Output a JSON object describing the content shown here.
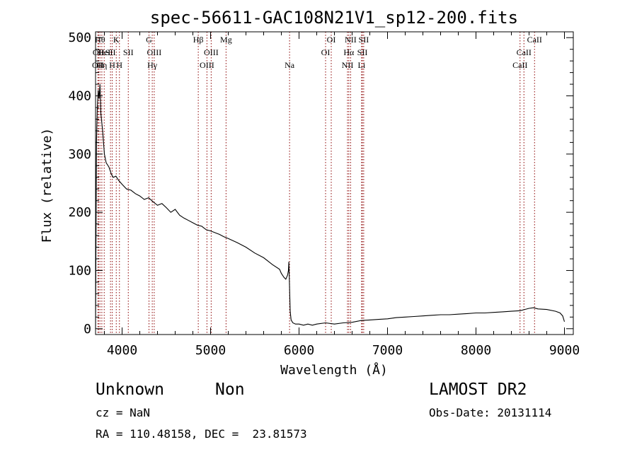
{
  "chart_data": {
    "type": "line",
    "title": "spec-56611-GAC108N21V1_sp12-200.fits",
    "xlabel": "Wavelength (Å)",
    "ylabel": "Flux (relative)",
    "xlim": [
      3700,
      9100
    ],
    "ylim": [
      -10,
      510
    ],
    "xticks": [
      4000,
      5000,
      6000,
      7000,
      8000,
      9000
    ],
    "yticks": [
      0,
      100,
      200,
      300,
      400,
      500
    ],
    "x_minor_step": 200,
    "y_minor_step": 20,
    "grid": false,
    "series": [
      {
        "x": [
          3700,
          3710,
          3720,
          3730,
          3740,
          3750,
          3760,
          3780,
          3800,
          3820,
          3850,
          3880,
          3900,
          3930,
          3960,
          4000,
          4050,
          4100,
          4150,
          4200,
          4250,
          4300,
          4350,
          4400,
          4450,
          4500,
          4550,
          4600,
          4650,
          4700,
          4750,
          4800,
          4850,
          4900,
          4950,
          5000,
          5050,
          5100,
          5150,
          5200,
          5300,
          5400,
          5500,
          5600,
          5700,
          5780,
          5800,
          5830,
          5850,
          5870,
          5880,
          5885,
          5890,
          5900,
          5910,
          5930,
          5960,
          6000,
          6050,
          6100,
          6150,
          6200,
          6300,
          6400,
          6500,
          6600,
          6700,
          6800,
          6900,
          7000,
          7100,
          7200,
          7300,
          7400,
          7500,
          7600,
          7700,
          7800,
          7900,
          8000,
          8100,
          8200,
          8300,
          8400,
          8500,
          8550,
          8600,
          8650,
          8700,
          8800,
          8900,
          8950,
          8980,
          9000
        ],
        "y": [
          0,
          320,
          380,
          410,
          395,
          420,
          370,
          340,
          300,
          285,
          278,
          265,
          260,
          262,
          255,
          248,
          240,
          238,
          232,
          228,
          222,
          225,
          218,
          212,
          215,
          208,
          200,
          205,
          195,
          190,
          186,
          182,
          178,
          176,
          170,
          168,
          165,
          162,
          158,
          155,
          148,
          140,
          130,
          122,
          110,
          102,
          95,
          88,
          85,
          92,
          100,
          115,
          85,
          30,
          15,
          10,
          8,
          8,
          6,
          8,
          6,
          8,
          10,
          8,
          10,
          11,
          14,
          15,
          16,
          17,
          19,
          20,
          21,
          22,
          23,
          24,
          24,
          25,
          26,
          27,
          27,
          28,
          29,
          30,
          31,
          33,
          35,
          36,
          34,
          33,
          30,
          27,
          22,
          12
        ]
      }
    ],
    "lines": [
      {
        "x": 3727,
        "tier": 2,
        "label": "OII"
      },
      {
        "x": 3734,
        "tier": 1,
        "label": "OII"
      },
      {
        "x": 3750,
        "tier": 0,
        "label": "Hθ"
      },
      {
        "x": 3771,
        "tier": 2,
        "label": "Hη"
      },
      {
        "x": 3798,
        "tier": 1,
        "label": "HeI"
      },
      {
        "x": 3869,
        "tier": 1,
        "label": "SII"
      },
      {
        "x": 3889,
        "tier": 2,
        "label": "H"
      },
      {
        "x": 3934,
        "tier": 0,
        "label": "K"
      },
      {
        "x": 3970,
        "tier": 2,
        "label": "H"
      },
      {
        "x": 4070,
        "tier": 1,
        "label": "SII"
      },
      {
        "x": 4304,
        "tier": 0,
        "label": "G"
      },
      {
        "x": 4341,
        "tier": 2,
        "label": "Hγ"
      },
      {
        "x": 4363,
        "tier": 1,
        "label": "OIII"
      },
      {
        "x": 4861,
        "tier": 0,
        "label": "Hβ"
      },
      {
        "x": 4959,
        "tier": 2,
        "label": "OIII"
      },
      {
        "x": 5007,
        "tier": 1,
        "label": "OIII"
      },
      {
        "x": 5175,
        "tier": 0,
        "label": "Mg"
      },
      {
        "x": 5893,
        "tier": 2,
        "label": "Na"
      },
      {
        "x": 6300,
        "tier": 1,
        "label": "OI"
      },
      {
        "x": 6364,
        "tier": 0,
        "label": "OI"
      },
      {
        "x": 6548,
        "tier": 2,
        "label": "NII"
      },
      {
        "x": 6563,
        "tier": 1,
        "label": "Hα"
      },
      {
        "x": 6583,
        "tier": 0,
        "label": "NII"
      },
      {
        "x": 6707,
        "tier": 2,
        "label": "Li"
      },
      {
        "x": 6716,
        "tier": 1,
        "label": "SII"
      },
      {
        "x": 6731,
        "tier": 0,
        "label": "SII"
      },
      {
        "x": 8498,
        "tier": 2,
        "label": "CaII"
      },
      {
        "x": 8542,
        "tier": 1,
        "label": "CaII"
      },
      {
        "x": 8662,
        "tier": 0,
        "label": "CaII"
      }
    ],
    "line_color": "#8b0000"
  },
  "info": {
    "object_class": "Unknown",
    "subclass": "Non",
    "survey": "LAMOST DR2",
    "cz": "cz = NaN",
    "obs_date": "Obs-Date: 20131114",
    "coords": "RA = 110.48158, DEC =  23.81573"
  }
}
